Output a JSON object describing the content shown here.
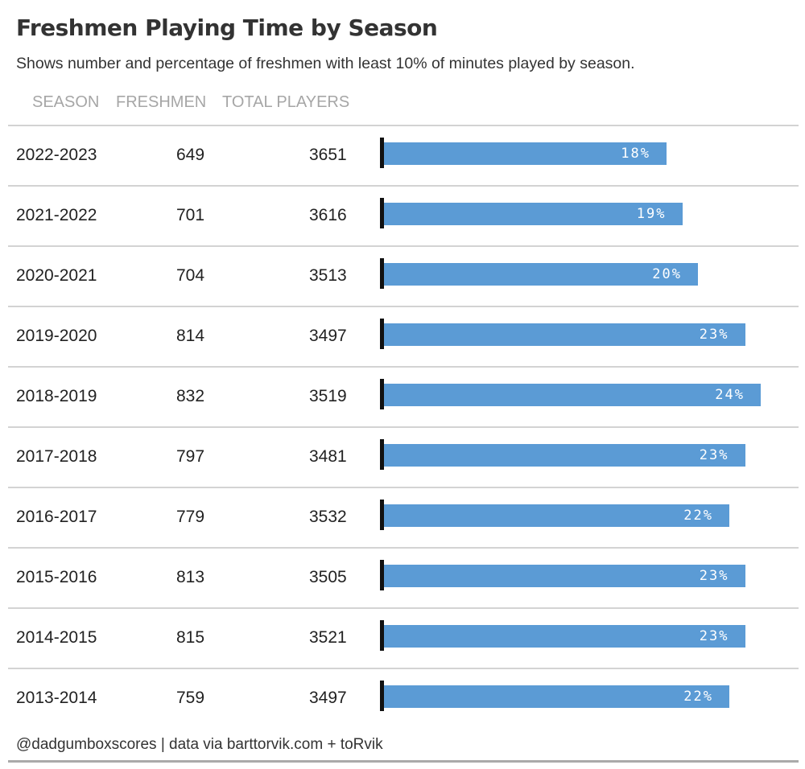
{
  "title": "Freshmen Playing Time by Season",
  "subtitle": "Shows number and percentage of freshmen with least 10% of minutes played by season.",
  "columns": {
    "season": "SEASON",
    "freshmen": "FRESHMEN",
    "total": "TOTAL PLAYERS"
  },
  "footer": "@dadgumboxscores | data via barttorvik.com + toRvik",
  "colors": {
    "bar": "#5b9bd5",
    "axis": "#111111",
    "header": "#a6a6a6"
  },
  "chart_data": {
    "type": "bar",
    "orientation": "horizontal",
    "xlim": [
      0,
      25
    ],
    "grid": false,
    "categories": [
      "2022-2023",
      "2021-2022",
      "2020-2021",
      "2019-2020",
      "2018-2019",
      "2017-2018",
      "2016-2017",
      "2015-2016",
      "2014-2015",
      "2013-2014"
    ],
    "freshmen": [
      649,
      701,
      704,
      814,
      832,
      797,
      779,
      813,
      815,
      759
    ],
    "total_players": [
      3651,
      3616,
      3513,
      3497,
      3519,
      3481,
      3532,
      3505,
      3521,
      3497
    ],
    "values": [
      18,
      19,
      20,
      23,
      24,
      23,
      22,
      23,
      23,
      22
    ],
    "labels": [
      "18%",
      "19%",
      "20%",
      "23%",
      "24%",
      "23%",
      "22%",
      "23%",
      "23%",
      "22%"
    ]
  }
}
